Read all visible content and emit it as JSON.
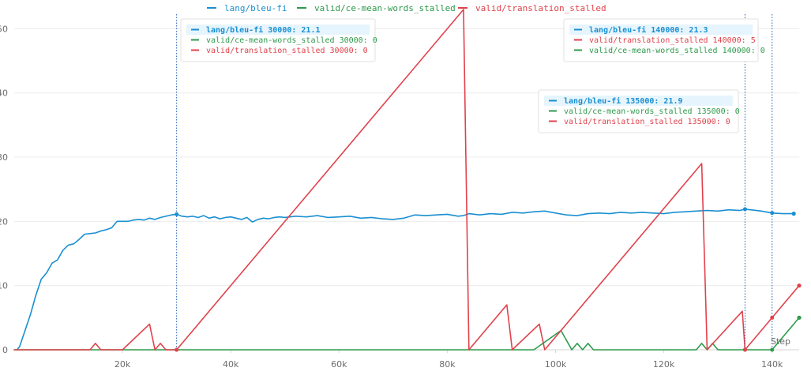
{
  "chart_data": {
    "type": "line",
    "title": "",
    "xlabel": "Step",
    "ylabel": "",
    "xlim": [
      0,
      145000
    ],
    "ylim": [
      0,
      53
    ],
    "x_ticks": [
      20000,
      40000,
      60000,
      80000,
      100000,
      120000,
      140000
    ],
    "x_tick_labels": [
      "20k",
      "40k",
      "60k",
      "80k",
      "100k",
      "120k",
      "140k"
    ],
    "y_ticks": [
      0,
      10,
      20,
      30,
      40,
      50
    ],
    "y_tick_labels": [
      "0",
      "10",
      "20",
      "30",
      "40",
      "50"
    ],
    "grid": true,
    "legend_position": "top",
    "series": [
      {
        "name": "lang/bleu-fi",
        "color": "#1a8fd1",
        "x": [
          500,
          1000,
          2000,
          3000,
          4000,
          5000,
          6000,
          7000,
          8000,
          9000,
          10000,
          11000,
          12000,
          13000,
          14000,
          15000,
          16000,
          17000,
          18000,
          19000,
          20000,
          21000,
          22000,
          23000,
          24000,
          25000,
          26000,
          27000,
          28000,
          29000,
          30000,
          31000,
          32000,
          33000,
          34000,
          35000,
          36000,
          37000,
          38000,
          39000,
          40000,
          41000,
          42000,
          43000,
          44000,
          45000,
          46000,
          47000,
          48000,
          49000,
          50000,
          52000,
          54000,
          56000,
          58000,
          60000,
          62000,
          64000,
          66000,
          68000,
          70000,
          72000,
          74000,
          76000,
          78000,
          80000,
          82000,
          83000,
          84000,
          86000,
          88000,
          90000,
          92000,
          94000,
          96000,
          98000,
          100000,
          102000,
          104000,
          106000,
          108000,
          110000,
          112000,
          114000,
          116000,
          118000,
          120000,
          122000,
          124000,
          126000,
          128000,
          130000,
          132000,
          134000,
          135000,
          136000,
          138000,
          140000,
          142000,
          144000
        ],
        "values": [
          0,
          0.5,
          3,
          5.5,
          8.5,
          11,
          12,
          13.5,
          14,
          15.5,
          16.3,
          16.5,
          17.2,
          18,
          18.1,
          18.2,
          18.5,
          18.7,
          19,
          20,
          20,
          20,
          20.2,
          20.3,
          20.2,
          20.5,
          20.3,
          20.6,
          20.8,
          21,
          21.1,
          20.8,
          20.7,
          20.8,
          20.6,
          20.9,
          20.5,
          20.7,
          20.4,
          20.6,
          20.7,
          20.5,
          20.3,
          20.6,
          19.9,
          20.3,
          20.5,
          20.4,
          20.6,
          20.7,
          20.6,
          20.8,
          20.7,
          20.9,
          20.6,
          20.7,
          20.8,
          20.5,
          20.6,
          20.4,
          20.3,
          20.5,
          21,
          20.9,
          21,
          21.1,
          20.8,
          20.9,
          21.2,
          21,
          21.2,
          21.1,
          21.4,
          21.3,
          21.5,
          21.6,
          21.3,
          21,
          20.9,
          21.2,
          21.3,
          21.2,
          21.4,
          21.3,
          21.4,
          21.3,
          21.2,
          21.4,
          21.5,
          21.6,
          21.7,
          21.6,
          21.8,
          21.7,
          21.9,
          21.8,
          21.6,
          21.3,
          21.2,
          21.2
        ]
      },
      {
        "name": "valid/ce-mean-words_stalled",
        "color": "#2e9a4b",
        "x": [
          0,
          30000,
          96000,
          101000,
          103000,
          104000,
          105000,
          106000,
          107000,
          126000,
          127000,
          128000,
          129000,
          130000,
          135000,
          140000,
          145000
        ],
        "values": [
          0,
          0,
          0,
          3,
          0,
          1,
          0,
          1,
          0,
          0,
          1,
          0,
          1,
          0,
          0,
          0,
          5
        ]
      },
      {
        "name": "valid/translation_stalled",
        "color": "#e0424b",
        "x": [
          0,
          14000,
          15000,
          16000,
          20000,
          25000,
          26000,
          27000,
          28000,
          29000,
          30000,
          83000,
          84000,
          91000,
          92000,
          97000,
          98000,
          127000,
          128000,
          134500,
          135000,
          140000,
          145000
        ],
        "values": [
          0,
          0,
          1,
          0,
          0,
          4,
          0,
          1,
          0,
          0,
          0,
          53,
          0,
          7,
          0,
          4,
          0,
          29,
          0,
          6,
          0,
          5,
          10
        ]
      }
    ],
    "hover_lines": [
      30000,
      135000,
      140000
    ],
    "tooltips": [
      {
        "step": 30000,
        "rows": [
          {
            "series": 0,
            "text": "lang/bleu-fi 30000: 21.1"
          },
          {
            "series": 1,
            "text": "valid/ce-mean-words_stalled 30000: 0"
          },
          {
            "series": 2,
            "text": "valid/translation_stalled 30000: 0"
          }
        ]
      },
      {
        "step": 140000,
        "rows": [
          {
            "series": 0,
            "text": "lang/bleu-fi 140000: 21.3"
          },
          {
            "series": 2,
            "text": "valid/translation_stalled 140000: 5"
          },
          {
            "series": 1,
            "text": "valid/ce-mean-words_stalled 140000: 0"
          }
        ]
      },
      {
        "step": 135000,
        "rows": [
          {
            "series": 0,
            "text": "lang/bleu-fi 135000: 21.9"
          },
          {
            "series": 1,
            "text": "valid/ce-mean-words_stalled 135000: 0"
          },
          {
            "series": 2,
            "text": "valid/translation_stalled 135000: 0"
          }
        ]
      }
    ]
  }
}
